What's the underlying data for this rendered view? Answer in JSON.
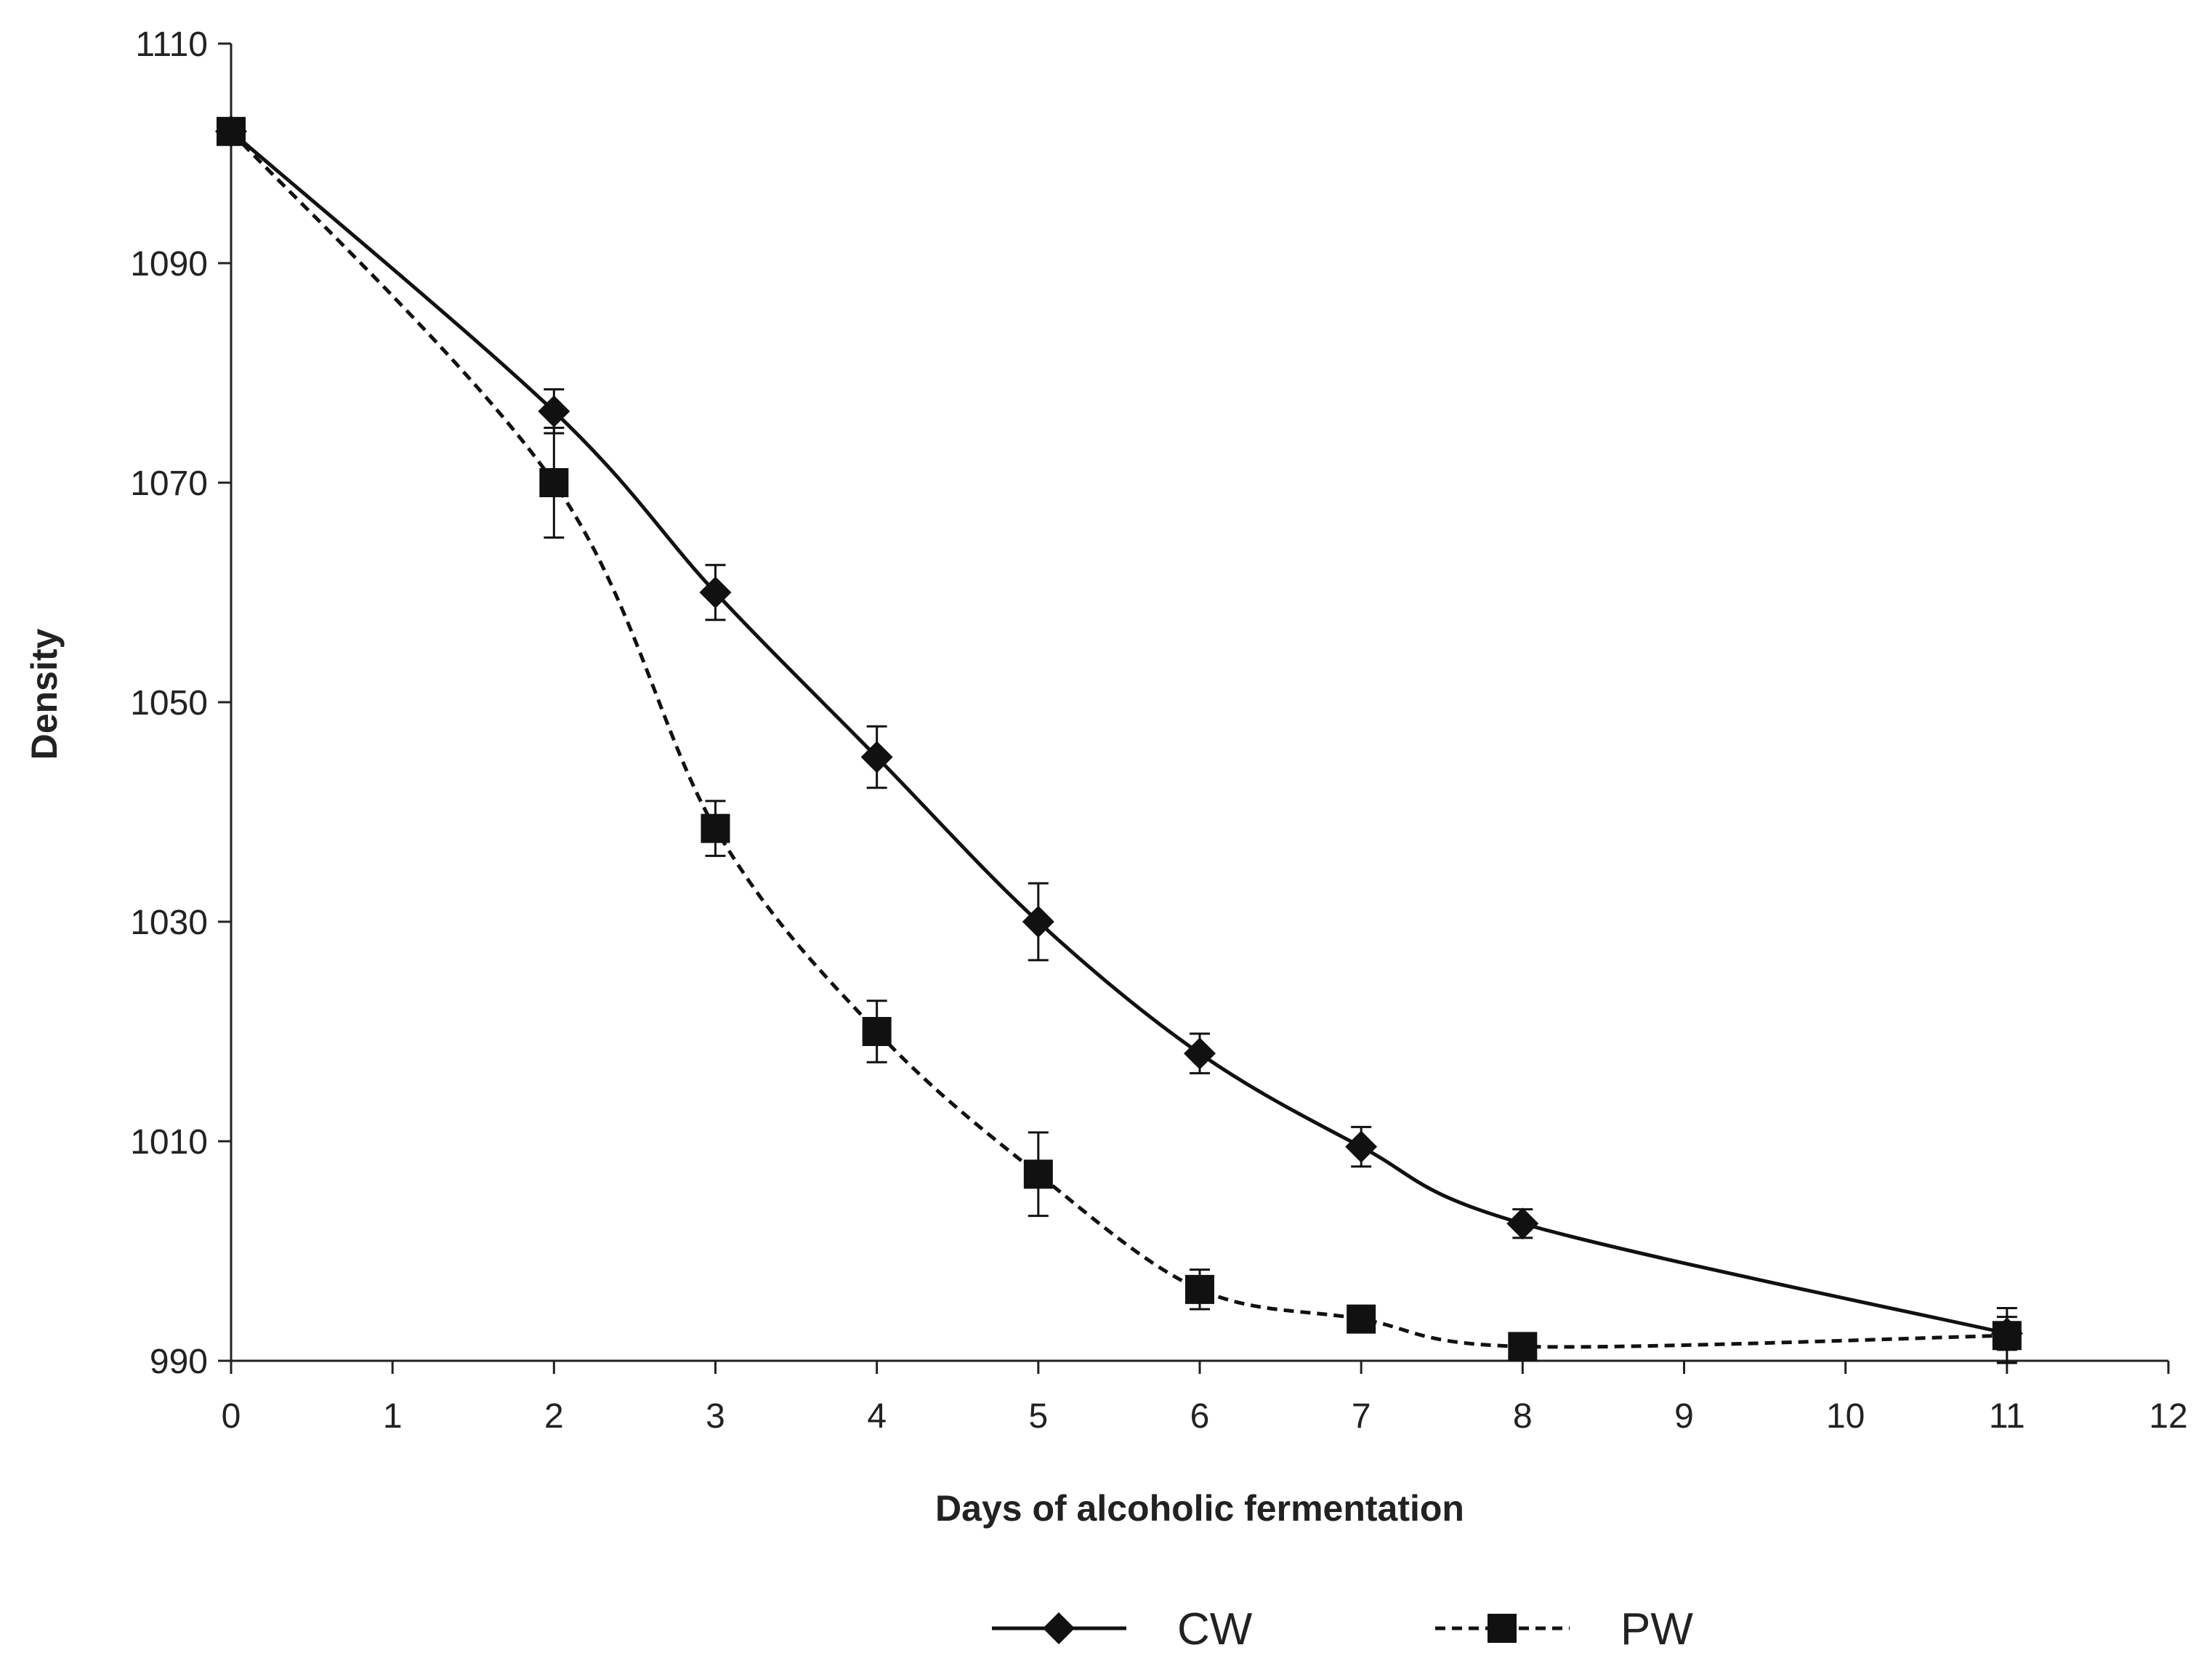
{
  "colors": {
    "background": "#ffffff",
    "axis": "#222222",
    "series": "#111111"
  },
  "chart_data": {
    "type": "line",
    "title": "",
    "xlabel": "Days of alcoholic fermentation",
    "ylabel": "Density",
    "xlim": [
      0,
      12
    ],
    "ylim": [
      990,
      1110
    ],
    "x_ticks": [
      "0",
      "1",
      "2",
      "3",
      "4",
      "5",
      "6",
      "7",
      "8",
      "9",
      "10",
      "11",
      "12"
    ],
    "y_ticks": [
      "990",
      "1010",
      "1030",
      "1050",
      "1070",
      "1090",
      "1110"
    ],
    "grid": false,
    "legend_position": "bottom-center",
    "series": [
      {
        "name": "CW",
        "marker": "diamond",
        "line_style": "solid",
        "x": [
          0,
          2,
          3,
          4,
          5,
          6,
          7,
          8,
          11
        ],
        "values": [
          1102,
          1076.5,
          1060,
          1045,
          1030,
          1018,
          1009.5,
          1002.5,
          992.5
        ],
        "error": [
          0,
          2.0,
          2.5,
          2.8,
          3.5,
          1.8,
          1.8,
          1.3,
          1.5
        ]
      },
      {
        "name": "PW",
        "marker": "square",
        "line_style": "dashed",
        "x": [
          0,
          2,
          3,
          4,
          5,
          6,
          7,
          8,
          11
        ],
        "values": [
          1102,
          1070,
          1038.5,
          1020,
          1007,
          996.5,
          993.8,
          991.3,
          992.3
        ],
        "error": [
          0,
          5.0,
          2.5,
          2.8,
          3.8,
          1.8,
          1.2,
          0.8,
          2.5
        ]
      }
    ]
  }
}
